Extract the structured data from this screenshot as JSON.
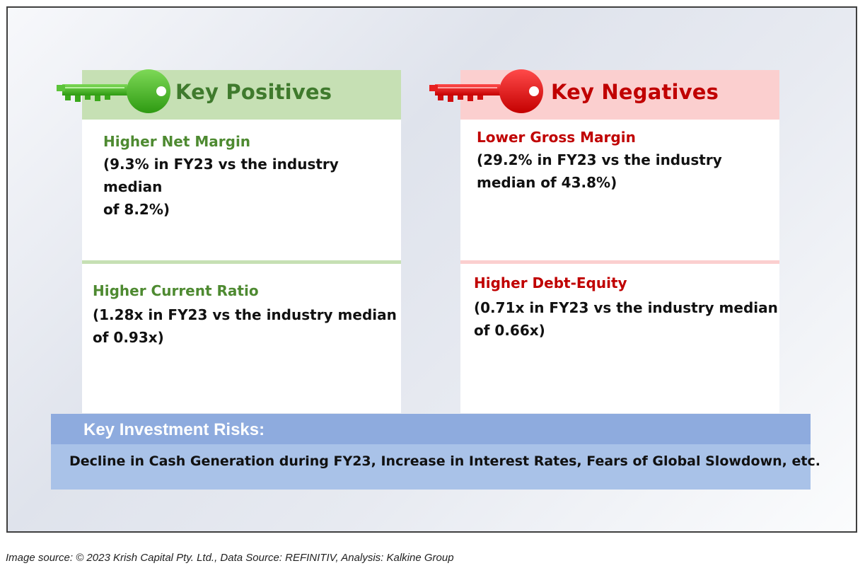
{
  "positives": {
    "title": "Key Positives",
    "icon": "green-key-icon",
    "color": "#4e8a31",
    "items": [
      {
        "title": "Higher Net Margin",
        "body_line1": "(9.3% in FY23 vs the industry median",
        "body_line2": "of 8.2%)"
      },
      {
        "title": "Higher Current Ratio",
        "body_line1": "(1.28x in FY23 vs the industry median",
        "body_line2": "of 0.93x)"
      }
    ]
  },
  "negatives": {
    "title": "Key Negatives",
    "icon": "red-key-icon",
    "color": "#c00000",
    "items": [
      {
        "title": "Lower Gross Margin",
        "body_line1": "(29.2% in FY23 vs the industry",
        "body_line2": "median of 43.8%)"
      },
      {
        "title": "Higher Debt-Equity",
        "body_line1": "(0.71x in FY23 vs the industry median",
        "body_line2": "of 0.66x)"
      }
    ]
  },
  "risks": {
    "title": "Key Investment Risks:",
    "text": "Decline in Cash Generation during FY23, Increase in Interest Rates, Fears of Global Slowdown, etc."
  },
  "source": "Image source: © 2023 Krish Capital Pty. Ltd., Data Source: REFINITIV, Analysis: Kalkine Group"
}
